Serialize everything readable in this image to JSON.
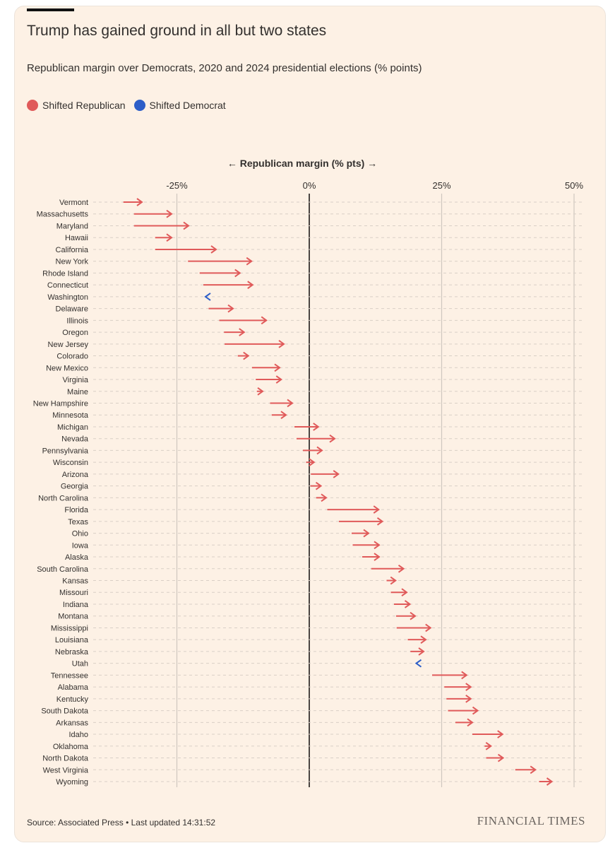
{
  "title": "Trump has gained ground in all but two states",
  "subtitle": "Republican margin over Democrats, 2020 and 2024 presidential elections (% points)",
  "legend": [
    {
      "label": "Shifted Republican",
      "color": "#e05a5a"
    },
    {
      "label": "Shifted Democrat",
      "color": "#2d5ec8"
    }
  ],
  "source": "Source: Associated Press • Last updated 14:31:52",
  "logo": "FINANCIAL TIMES",
  "chart_data": {
    "type": "arrow",
    "xlabel": "← Republican margin (% pts) →",
    "xlim": [
      -36,
      51
    ],
    "xticks": [
      -25,
      0,
      25,
      50
    ],
    "xtick_labels": [
      "-25%",
      "0%",
      "25%",
      "50%"
    ],
    "grid": true,
    "series_fields": [
      "2020",
      "2024"
    ],
    "rows": [
      {
        "state": "Vermont",
        "m2020": -35.1,
        "m2024": -31.6
      },
      {
        "state": "Massachusetts",
        "m2020": -33.1,
        "m2024": -26.0
      },
      {
        "state": "Maryland",
        "m2020": -33.1,
        "m2024": -22.8
      },
      {
        "state": "Hawaii",
        "m2020": -29.1,
        "m2024": -26.0
      },
      {
        "state": "California",
        "m2020": -29.1,
        "m2024": -17.6
      },
      {
        "state": "New York",
        "m2020": -22.9,
        "m2024": -10.9
      },
      {
        "state": "Rhode Island",
        "m2020": -20.7,
        "m2024": -13.1
      },
      {
        "state": "Connecticut",
        "m2020": -20.0,
        "m2024": -10.7
      },
      {
        "state": "Washington",
        "m2020": -18.9,
        "m2024": -19.6
      },
      {
        "state": "Delaware",
        "m2020": -19.0,
        "m2024": -14.4
      },
      {
        "state": "Illinois",
        "m2020": -17.0,
        "m2024": -8.1
      },
      {
        "state": "Oregon",
        "m2020": -16.1,
        "m2024": -12.3
      },
      {
        "state": "New Jersey",
        "m2020": -16.0,
        "m2024": -4.8
      },
      {
        "state": "Colorado",
        "m2020": -13.5,
        "m2024": -11.5
      },
      {
        "state": "New Mexico",
        "m2020": -10.8,
        "m2024": -5.6
      },
      {
        "state": "Virginia",
        "m2020": -10.1,
        "m2024": -5.3
      },
      {
        "state": "Maine",
        "m2020": -9.9,
        "m2024": -8.8
      },
      {
        "state": "New Hampshire",
        "m2020": -7.4,
        "m2024": -3.2
      },
      {
        "state": "Minnesota",
        "m2020": -7.1,
        "m2024": -4.4
      },
      {
        "state": "Michigan",
        "m2020": -2.8,
        "m2024": 1.7
      },
      {
        "state": "Nevada",
        "m2020": -2.4,
        "m2024": 4.8
      },
      {
        "state": "Pennsylvania",
        "m2020": -1.2,
        "m2024": 2.4
      },
      {
        "state": "Wisconsin",
        "m2020": -0.6,
        "m2024": 0.9
      },
      {
        "state": "Arizona",
        "m2020": 0.3,
        "m2024": 5.5
      },
      {
        "state": "Georgia",
        "m2020": 0.2,
        "m2024": 2.2
      },
      {
        "state": "North Carolina",
        "m2020": 1.3,
        "m2024": 3.2
      },
      {
        "state": "Florida",
        "m2020": 3.4,
        "m2024": 13.1
      },
      {
        "state": "Texas",
        "m2020": 5.6,
        "m2024": 13.8
      },
      {
        "state": "Ohio",
        "m2020": 8.0,
        "m2024": 11.2
      },
      {
        "state": "Iowa",
        "m2020": 8.2,
        "m2024": 13.2
      },
      {
        "state": "Alaska",
        "m2020": 10.0,
        "m2024": 13.2
      },
      {
        "state": "South Carolina",
        "m2020": 11.7,
        "m2024": 17.8
      },
      {
        "state": "Kansas",
        "m2020": 14.6,
        "m2024": 16.3
      },
      {
        "state": "Missouri",
        "m2020": 15.4,
        "m2024": 18.4
      },
      {
        "state": "Indiana",
        "m2020": 16.0,
        "m2024": 19.0
      },
      {
        "state": "Montana",
        "m2020": 16.4,
        "m2024": 20.0
      },
      {
        "state": "Mississippi",
        "m2020": 16.5,
        "m2024": 22.9
      },
      {
        "state": "Louisiana",
        "m2020": 18.6,
        "m2024": 22.0
      },
      {
        "state": "Nebraska",
        "m2020": 19.1,
        "m2024": 21.6
      },
      {
        "state": "Utah",
        "m2020": 20.6,
        "m2024": 20.2
      },
      {
        "state": "Tennessee",
        "m2020": 23.2,
        "m2024": 29.7
      },
      {
        "state": "Alabama",
        "m2020": 25.5,
        "m2024": 30.5
      },
      {
        "state": "Kentucky",
        "m2020": 25.9,
        "m2024": 30.5
      },
      {
        "state": "South Dakota",
        "m2020": 26.2,
        "m2024": 31.8
      },
      {
        "state": "Arkansas",
        "m2020": 27.6,
        "m2024": 30.8
      },
      {
        "state": "Idaho",
        "m2020": 30.8,
        "m2024": 36.5
      },
      {
        "state": "Oklahoma",
        "m2020": 33.1,
        "m2024": 34.3
      },
      {
        "state": "North Dakota",
        "m2020": 33.4,
        "m2024": 36.6
      },
      {
        "state": "West Virginia",
        "m2020": 38.9,
        "m2024": 42.7
      },
      {
        "state": "Wyoming",
        "m2020": 43.4,
        "m2024": 45.8
      }
    ]
  }
}
